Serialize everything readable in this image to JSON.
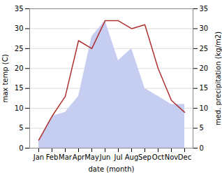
{
  "chart_data": {
    "type": "line",
    "xlabel": "date (month)",
    "ylabel": "max temp (C)",
    "y2label": "med. precipitation (kg/m2)",
    "categories": [
      "Jan",
      "Feb",
      "Mar",
      "Apr",
      "May",
      "Jun",
      "Jul",
      "Aug",
      "Sep",
      "Oct",
      "Nov",
      "Dec"
    ],
    "series": [
      {
        "type": "line",
        "color": "#b03030",
        "values": [
          2,
          8,
          13,
          27,
          25,
          32,
          32,
          30,
          31,
          20,
          12,
          9
        ]
      },
      {
        "type": "area",
        "axis": "y2",
        "color": "#c5cdf0",
        "values": [
          2,
          8,
          9,
          13,
          28,
          32,
          22,
          25,
          15,
          13,
          11,
          11
        ]
      }
    ],
    "ylim": [
      0,
      35
    ],
    "yticks": [
      0,
      5,
      10,
      15,
      20,
      25,
      30,
      35
    ],
    "y2lim": [
      0,
      35
    ],
    "y2ticks": [
      0,
      5,
      10,
      15,
      20,
      25,
      30,
      35
    ],
    "grid": true
  }
}
